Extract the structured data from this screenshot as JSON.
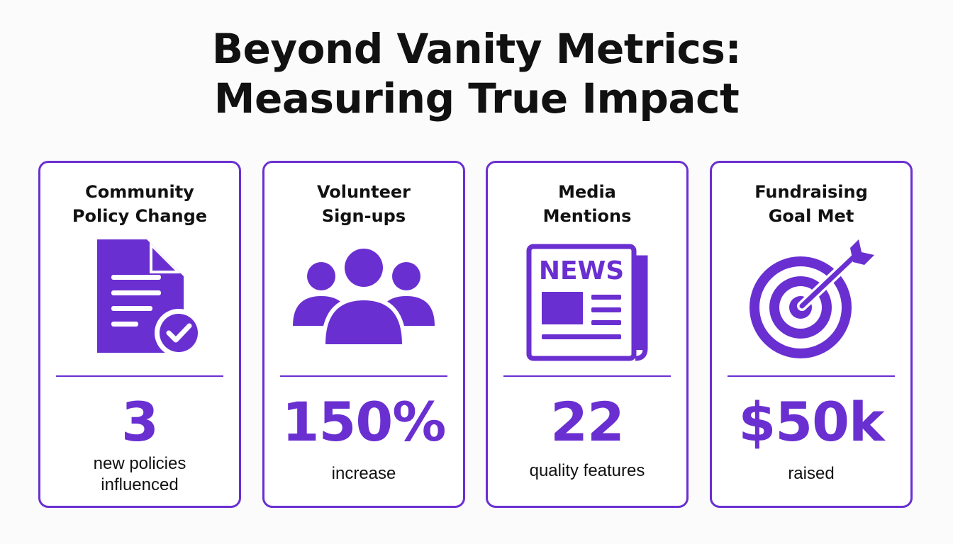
{
  "header": {
    "title_line1": "Beyond Vanity Metrics:",
    "title_line2": "Measuring True Impact"
  },
  "accent_color": "#6a2fd1",
  "cards": [
    {
      "title_line1": "Community",
      "title_line2": "Policy Change",
      "icon": "document-check-icon",
      "value": "3",
      "desc_line1": "new policies",
      "desc_line2": "influenced"
    },
    {
      "title_line1": "Volunteer",
      "title_line2": "Sign-ups",
      "icon": "people-group-icon",
      "value": "150%",
      "desc_line1": "increase"
    },
    {
      "title_line1": "Media",
      "title_line2": "Mentions",
      "icon": "newspaper-icon",
      "icon_text": "NEWS",
      "value": "22",
      "desc_line1": "quality features"
    },
    {
      "title_line1": "Fundraising",
      "title_line2": "Goal Met",
      "icon": "target-arrow-icon",
      "value": "$50k",
      "desc_line1": "raised"
    }
  ]
}
